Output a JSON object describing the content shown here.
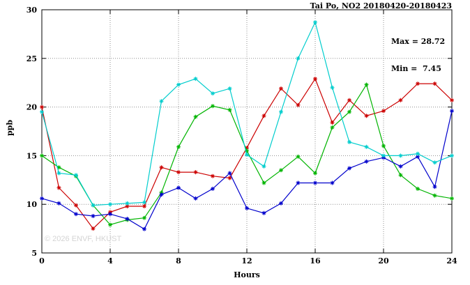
{
  "header": {
    "title": "Tai Po, NO2 20180420-20180423"
  },
  "annotation": {
    "max_label": "Max = 28.72",
    "min_label": "Min =  7.45"
  },
  "watermark": "© 2026 ENVF, HKUST",
  "chart_data": {
    "type": "line",
    "title": "Tai Po, NO2 20180420-20180423",
    "xlabel": "Hours",
    "ylabel": "ppb",
    "xlim": [
      0,
      24
    ],
    "ylim": [
      5,
      30
    ],
    "xticks": [
      0,
      4,
      8,
      12,
      16,
      20,
      24
    ],
    "yticks": [
      5,
      10,
      15,
      20,
      25,
      30
    ],
    "grid": true,
    "legend": "none",
    "marker": "asterisk",
    "stats": {
      "max": 28.72,
      "min": 7.45
    },
    "x": [
      0,
      1,
      2,
      3,
      4,
      5,
      6,
      7,
      8,
      9,
      10,
      11,
      12,
      13,
      14,
      15,
      16,
      17,
      18,
      19,
      20,
      21,
      22,
      23,
      24
    ],
    "series": [
      {
        "name": "red",
        "color": "#cc0000",
        "values": [
          20.0,
          11.7,
          9.9,
          7.5,
          9.2,
          9.8,
          9.8,
          13.8,
          13.3,
          13.3,
          12.9,
          12.7,
          15.8,
          19.1,
          21.9,
          20.2,
          22.9,
          18.4,
          20.7,
          19.1,
          19.6,
          20.7,
          22.4,
          22.4,
          20.7
        ]
      },
      {
        "name": "green",
        "color": "#00b400",
        "values": [
          15.0,
          13.8,
          12.9,
          9.9,
          7.9,
          8.4,
          8.6,
          11.2,
          15.9,
          19.0,
          20.1,
          19.7,
          15.5,
          12.2,
          13.5,
          14.9,
          13.2,
          17.9,
          19.5,
          22.3,
          16.0,
          13.0,
          11.6,
          10.9,
          10.6
        ]
      },
      {
        "name": "blue",
        "color": "#0000cc",
        "values": [
          10.6,
          10.1,
          9.0,
          8.8,
          9.0,
          8.5,
          7.45,
          11.0,
          11.7,
          10.6,
          11.6,
          13.2,
          9.6,
          9.1,
          10.1,
          12.2,
          12.2,
          12.2,
          13.7,
          14.4,
          14.8,
          13.9,
          14.9,
          11.8,
          19.6
        ]
      },
      {
        "name": "cyan",
        "color": "#00cdcd",
        "values": [
          19.5,
          13.2,
          13.0,
          9.9,
          10.0,
          10.1,
          10.2,
          20.6,
          22.3,
          22.9,
          21.4,
          21.9,
          15.1,
          13.9,
          19.5,
          25.0,
          28.72,
          22.0,
          16.4,
          15.9,
          15.0,
          15.0,
          15.2,
          14.3,
          15.0
        ]
      }
    ]
  }
}
